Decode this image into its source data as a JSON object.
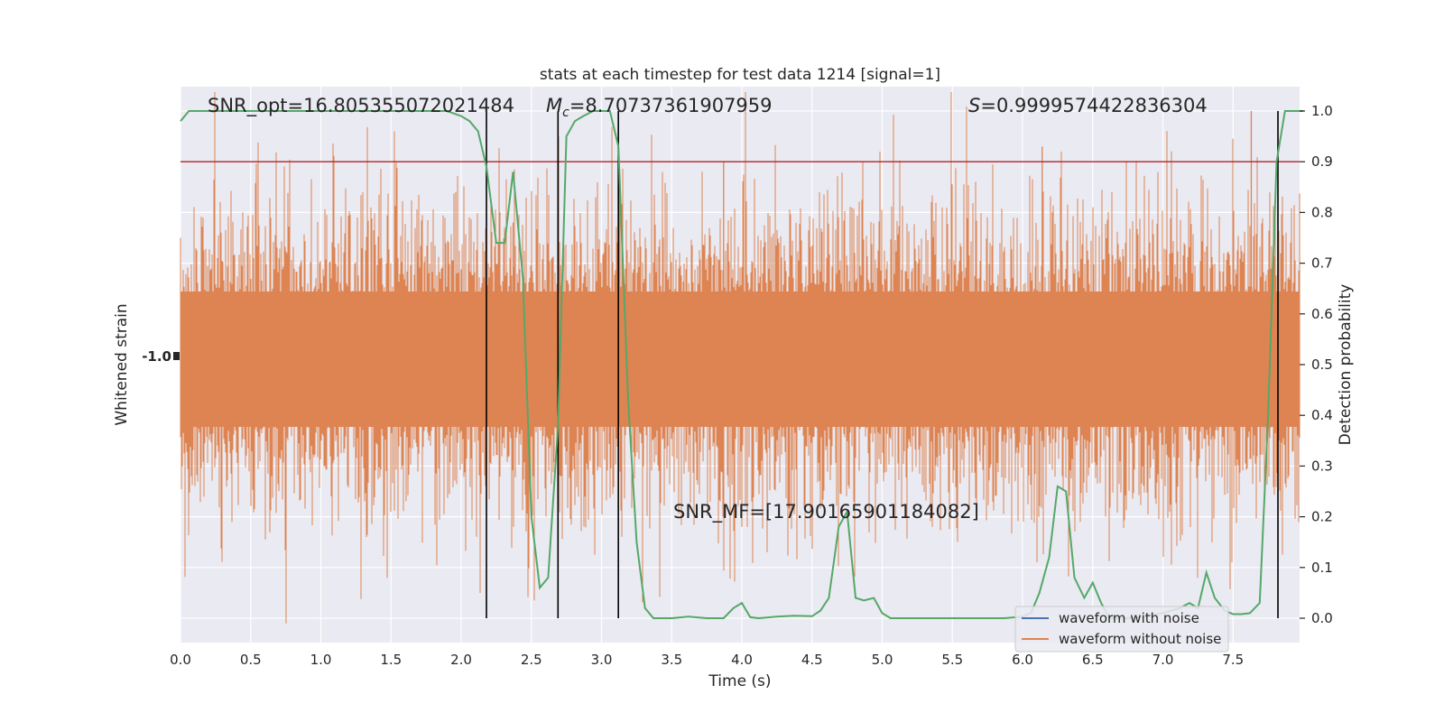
{
  "chart_data": {
    "type": "line",
    "title": "stats at each timestep for test data 1214 [signal=1]",
    "xlabel": "Time (s)",
    "ylabel_left": "Whitened strain",
    "ylabel_right": "Detection probability",
    "xlim": [
      0,
      8
    ],
    "ylim_right": [
      -0.05,
      1.05
    ],
    "x_ticks": [
      "0.0",
      "0.5",
      "1.0",
      "1.5",
      "2.0",
      "2.5",
      "3.0",
      "3.5",
      "4.0",
      "4.5",
      "5.0",
      "5.5",
      "6.0",
      "6.5",
      "7.0",
      "7.5"
    ],
    "x_tick_values": [
      0,
      0.5,
      1,
      1.5,
      2,
      2.5,
      3,
      3.5,
      4,
      4.5,
      5,
      5.5,
      6,
      6.5,
      7,
      7.5
    ],
    "y_right_ticks": [
      "0.0",
      "0.1",
      "0.2",
      "0.3",
      "0.4",
      "0.5",
      "0.6",
      "0.7",
      "0.8",
      "0.9",
      "1.0"
    ],
    "y_right_tick_values": [
      0,
      0.1,
      0.2,
      0.3,
      0.4,
      0.5,
      0.6,
      0.7,
      0.8,
      0.9,
      1.0
    ],
    "left_tick_glyph": "-1.0",
    "threshold": 0.9,
    "vlines": [
      2.18,
      2.69,
      3.12,
      7.82
    ],
    "annotations": {
      "snr_opt": "SNR_opt=16.805355072021484",
      "mc_symbol": "M",
      "mc_sub": "c",
      "mc_value": "=8.70737361907959",
      "s_symbol": "S",
      "s_value": "=0.9999574422836304",
      "snr_mf": "SNR_MF=[17.90165901184082]"
    },
    "series": [
      {
        "name": "waveform with noise",
        "color": "#4c72b0"
      },
      {
        "name": "waveform without noise",
        "color": "#dd8452"
      }
    ],
    "detection_probability": {
      "color": "#55a868",
      "x": [
        0.0,
        0.06,
        0.13,
        0.19,
        0.25,
        0.5,
        1.0,
        1.5,
        1.75,
        1.9,
        2.0,
        2.06,
        2.12,
        2.18,
        2.25,
        2.31,
        2.37,
        2.44,
        2.5,
        2.56,
        2.62,
        2.69,
        2.75,
        2.81,
        2.87,
        2.94,
        3.0,
        3.06,
        3.12,
        3.19,
        3.25,
        3.31,
        3.37,
        3.5,
        3.62,
        3.75,
        3.87,
        3.94,
        4.0,
        4.06,
        4.12,
        4.25,
        4.37,
        4.5,
        4.56,
        4.62,
        4.69,
        4.75,
        4.81,
        4.87,
        4.94,
        5.0,
        5.06,
        5.25,
        5.5,
        5.75,
        5.87,
        6.0,
        6.06,
        6.12,
        6.19,
        6.25,
        6.31,
        6.37,
        6.44,
        6.5,
        6.56,
        6.62,
        6.75,
        6.87,
        7.0,
        7.12,
        7.19,
        7.25,
        7.31,
        7.37,
        7.44,
        7.5,
        7.56,
        7.62,
        7.69,
        7.75,
        7.81,
        7.87,
        7.94,
        8.0
      ],
      "y": [
        0.98,
        1.0,
        1.0,
        1.0,
        1.0,
        1.0,
        1.0,
        1.0,
        1.0,
        1.0,
        0.99,
        0.98,
        0.96,
        0.89,
        0.74,
        0.74,
        0.88,
        0.67,
        0.2,
        0.06,
        0.08,
        0.38,
        0.95,
        0.98,
        0.99,
        1.0,
        1.0,
        1.0,
        0.93,
        0.43,
        0.15,
        0.02,
        0.0,
        0.0,
        0.003,
        0.0,
        0.0,
        0.02,
        0.03,
        0.002,
        0.0,
        0.003,
        0.005,
        0.004,
        0.015,
        0.04,
        0.18,
        0.21,
        0.04,
        0.035,
        0.04,
        0.01,
        0.0,
        0.0,
        0.0,
        0.0,
        0.0,
        0.003,
        0.01,
        0.05,
        0.12,
        0.26,
        0.25,
        0.08,
        0.04,
        0.07,
        0.03,
        0.0,
        0.0,
        0.003,
        0.01,
        0.02,
        0.03,
        0.02,
        0.09,
        0.04,
        0.015,
        0.008,
        0.008,
        0.01,
        0.03,
        0.4,
        0.9,
        1.0,
        1.0,
        1.0
      ]
    },
    "legend_position": "lower right",
    "grid": true
  }
}
